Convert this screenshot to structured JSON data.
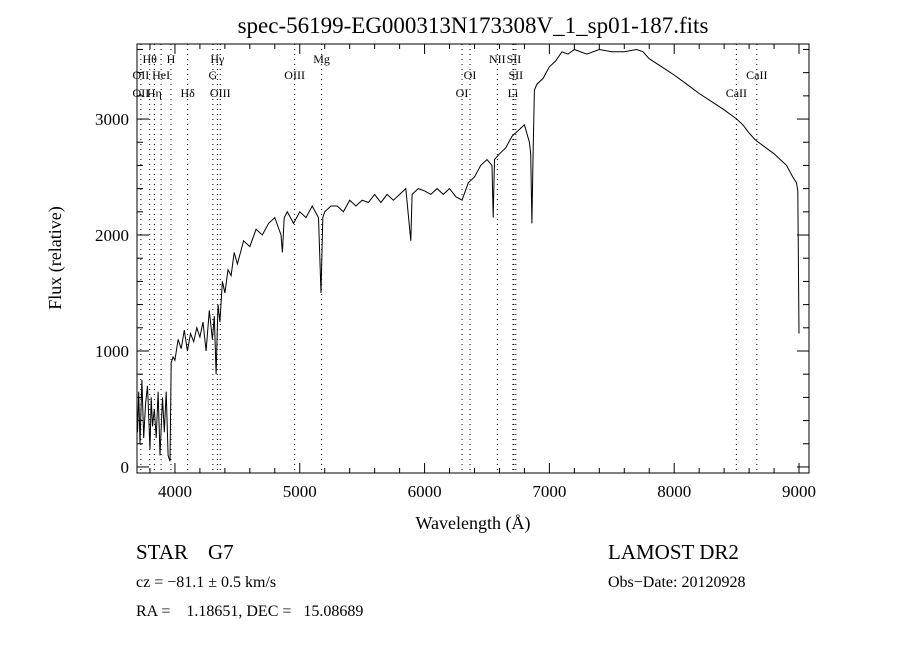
{
  "chart_data": {
    "type": "line",
    "title": "spec-56199-EG000313N173308V_1_sp01-187.fits",
    "xlabel": "Wavelength (Å)",
    "ylabel": "Flux (relative)",
    "xlim": [
      3696,
      9080
    ],
    "ylim": [
      -52,
      3647
    ],
    "x_ticks": [
      4000,
      5000,
      6000,
      7000,
      8000,
      9000
    ],
    "y_ticks": [
      0,
      1000,
      2000,
      3000
    ],
    "grid": false,
    "series": [
      {
        "name": "spectrum",
        "x": [
          3700,
          3710,
          3720,
          3735,
          3750,
          3765,
          3780,
          3800,
          3810,
          3820,
          3835,
          3850,
          3865,
          3880,
          3900,
          3915,
          3930,
          3945,
          3960,
          3970,
          3985,
          4000,
          4025,
          4050,
          4075,
          4100,
          4125,
          4150,
          4175,
          4200,
          4225,
          4250,
          4275,
          4300,
          4315,
          4330,
          4345,
          4360,
          4380,
          4400,
          4425,
          4450,
          4475,
          4500,
          4550,
          4600,
          4650,
          4700,
          4750,
          4800,
          4850,
          4861,
          4875,
          4900,
          4950,
          5000,
          5050,
          5100,
          5150,
          5170,
          5185,
          5200,
          5250,
          5300,
          5350,
          5400,
          5450,
          5500,
          5550,
          5600,
          5650,
          5700,
          5750,
          5800,
          5850,
          5890,
          5900,
          5950,
          6000,
          6050,
          6100,
          6150,
          6200,
          6250,
          6300,
          6350,
          6400,
          6450,
          6500,
          6540,
          6550,
          6560,
          6600,
          6650,
          6700,
          6750,
          6800,
          6840,
          6850,
          6860,
          6870,
          6880,
          6900,
          6950,
          7000,
          7050,
          7100,
          7150,
          7200,
          7300,
          7400,
          7500,
          7600,
          7700,
          7750,
          7800,
          7900,
          8000,
          8100,
          8200,
          8300,
          8400,
          8500,
          8550,
          8600,
          8650,
          8700,
          8750,
          8800,
          8850,
          8900,
          8950,
          8980,
          8990,
          9000
        ],
        "y": [
          300,
          650,
          200,
          750,
          250,
          550,
          700,
          150,
          600,
          350,
          500,
          250,
          650,
          100,
          600,
          300,
          650,
          100,
          50,
          900,
          950,
          920,
          1100,
          1020,
          1180,
          1000,
          1150,
          1080,
          1200,
          1120,
          1250,
          1000,
          1350,
          1100,
          1300,
          800,
          1400,
          1250,
          1600,
          1500,
          1700,
          1650,
          1850,
          1750,
          1950,
          1900,
          2050,
          2000,
          2100,
          2150,
          2000,
          1850,
          2150,
          2200,
          2100,
          2200,
          2150,
          2250,
          2150,
          1500,
          2150,
          2200,
          2250,
          2250,
          2200,
          2300,
          2250,
          2300,
          2280,
          2350,
          2280,
          2350,
          2300,
          2350,
          2400,
          1950,
          2350,
          2400,
          2380,
          2350,
          2400,
          2350,
          2400,
          2330,
          2300,
          2450,
          2500,
          2600,
          2650,
          2600,
          2150,
          2650,
          2700,
          2750,
          2850,
          2900,
          2950,
          2800,
          2700,
          2100,
          2750,
          3250,
          3300,
          3350,
          3450,
          3500,
          3580,
          3560,
          3600,
          3560,
          3600,
          3580,
          3580,
          3600,
          3580,
          3520,
          3450,
          3380,
          3300,
          3220,
          3150,
          3080,
          3000,
          2950,
          2880,
          2820,
          2780,
          2740,
          2700,
          2650,
          2600,
          2500,
          2450,
          2380,
          1150
        ]
      }
    ],
    "line_markers": [
      {
        "label": "Hθ",
        "wavelength": 3798,
        "tier": 1
      },
      {
        "label": "H",
        "wavelength": 3968,
        "tier": 1
      },
      {
        "label": "Hγ",
        "wavelength": 4340,
        "tier": 1
      },
      {
        "label": "Mg",
        "wavelength": 5175,
        "tier": 1
      },
      {
        "label": "NII",
        "wavelength": 6583,
        "tier": 1
      },
      {
        "label": "SII",
        "wavelength": 6716,
        "tier": 1
      },
      {
        "label": "OII",
        "wavelength": 3727,
        "tier": 2
      },
      {
        "label": "HeI",
        "wavelength": 3889,
        "tier": 2
      },
      {
        "label": "G",
        "wavelength": 4304,
        "tier": 2
      },
      {
        "label": "OIII",
        "wavelength": 4959,
        "tier": 2
      },
      {
        "label": "OI",
        "wavelength": 6364,
        "tier": 2
      },
      {
        "label": "SII",
        "wavelength": 6731,
        "tier": 2
      },
      {
        "label": "CaII",
        "wavelength": 8662,
        "tier": 2
      },
      {
        "label": "OII",
        "wavelength": 3727,
        "tier": 3
      },
      {
        "label": "Hη",
        "wavelength": 3835,
        "tier": 3
      },
      {
        "label": "Hδ",
        "wavelength": 4102,
        "tier": 3
      },
      {
        "label": "OIII",
        "wavelength": 4363,
        "tier": 3
      },
      {
        "label": "OI",
        "wavelength": 6300,
        "tier": 3
      },
      {
        "label": "Li",
        "wavelength": 6708,
        "tier": 3
      },
      {
        "label": "CaII",
        "wavelength": 8498,
        "tier": 3
      }
    ]
  },
  "info": {
    "object_class": "STAR",
    "subclass": "G7",
    "survey": "LAMOST DR2",
    "redshift": "cz = −81.1 ± 0.5 km/s",
    "obs_date": "Obs−Date: 20120928",
    "coords": "RA =    1.18651, DEC =   15.08689"
  }
}
